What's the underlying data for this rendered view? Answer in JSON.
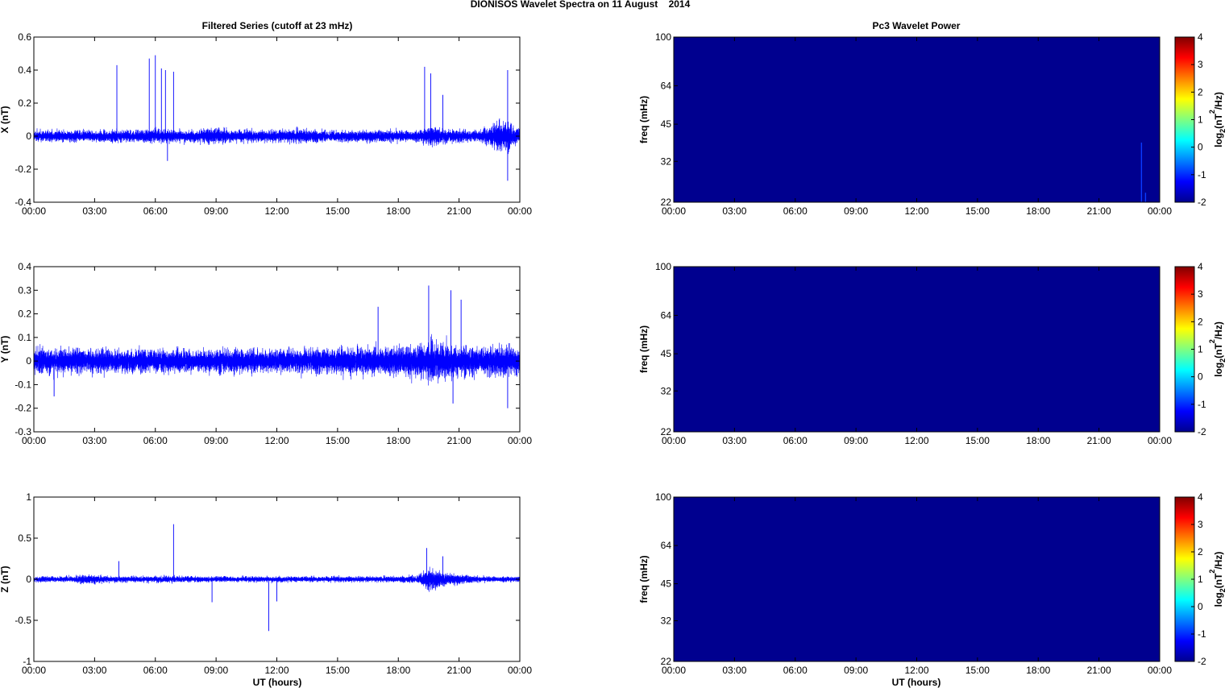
{
  "figure": {
    "title": "DIONISOS Wavelet Spectra on 11 August    2014",
    "left_title": "Filtered Series (cutoff at 23 mHz)",
    "right_title": "Pc3 Wavelet Power",
    "xlabel": "UT (hours)"
  },
  "colors": {
    "trace": "#0000ff",
    "spectrogram_background": "#00008f",
    "axis": "#000000"
  },
  "chart_data": [
    {
      "type": "line",
      "panel": "X",
      "title": "Filtered Series (cutoff at 23 mHz)",
      "xlabel": "",
      "ylabel": "X (nT)",
      "x_ticks": [
        "00:00",
        "03:00",
        "06:00",
        "09:00",
        "12:00",
        "15:00",
        "18:00",
        "21:00",
        "00:00"
      ],
      "y_ticks": [
        0.6,
        0.4,
        0.2,
        0,
        -0.2,
        -0.4
      ],
      "ylim": [
        -0.4,
        0.6
      ],
      "xlim_hours": [
        0,
        24
      ],
      "noise_envelope": {
        "hours": [
          0,
          2,
          4,
          6,
          8,
          8.8,
          9.5,
          11,
          13,
          15,
          17,
          19,
          19.5,
          20.5,
          22,
          23.3,
          23.6,
          24
        ],
        "amplitude": [
          0.05,
          0.05,
          0.05,
          0.06,
          0.05,
          0.08,
          0.06,
          0.05,
          0.06,
          0.05,
          0.05,
          0.05,
          0.09,
          0.06,
          0.05,
          0.15,
          0.1,
          0.05
        ]
      },
      "spikes": [
        {
          "hour": 4.1,
          "value": 0.43
        },
        {
          "hour": 5.7,
          "value": 0.47
        },
        {
          "hour": 6.0,
          "value": 0.49
        },
        {
          "hour": 6.3,
          "value": 0.41
        },
        {
          "hour": 6.5,
          "value": 0.4
        },
        {
          "hour": 6.9,
          "value": 0.39
        },
        {
          "hour": 6.6,
          "value": -0.15
        },
        {
          "hour": 19.3,
          "value": 0.42
        },
        {
          "hour": 19.6,
          "value": 0.38
        },
        {
          "hour": 20.2,
          "value": 0.25
        },
        {
          "hour": 23.4,
          "value": 0.4
        },
        {
          "hour": 23.4,
          "value": -0.27
        }
      ]
    },
    {
      "type": "line",
      "panel": "Y",
      "title": "",
      "xlabel": "",
      "ylabel": "Y (nT)",
      "x_ticks": [
        "00:00",
        "03:00",
        "06:00",
        "09:00",
        "12:00",
        "15:00",
        "18:00",
        "21:00",
        "00:00"
      ],
      "y_ticks": [
        0.4,
        0.3,
        0.2,
        0.1,
        0,
        -0.1,
        -0.2,
        -0.3
      ],
      "ylim": [
        -0.3,
        0.4
      ],
      "xlim_hours": [
        0,
        24
      ],
      "noise_envelope": {
        "hours": [
          0,
          2,
          4,
          6,
          8,
          10,
          12,
          14,
          16,
          18,
          19,
          19.5,
          20.5,
          22,
          23.3,
          24
        ],
        "amplitude": [
          0.08,
          0.08,
          0.07,
          0.07,
          0.07,
          0.07,
          0.07,
          0.08,
          0.08,
          0.09,
          0.1,
          0.12,
          0.1,
          0.08,
          0.1,
          0.08
        ]
      },
      "spikes": [
        {
          "hour": 19.5,
          "value": 0.32
        },
        {
          "hour": 20.6,
          "value": 0.3
        },
        {
          "hour": 21.1,
          "value": 0.26
        },
        {
          "hour": 17.0,
          "value": 0.23
        },
        {
          "hour": 23.4,
          "value": -0.2
        },
        {
          "hour": 1.0,
          "value": -0.15
        },
        {
          "hour": 20.7,
          "value": -0.18
        }
      ]
    },
    {
      "type": "line",
      "panel": "Z",
      "title": "",
      "xlabel": "UT (hours)",
      "ylabel": "Z (nT)",
      "x_ticks": [
        "00:00",
        "03:00",
        "06:00",
        "09:00",
        "12:00",
        "15:00",
        "18:00",
        "21:00",
        "00:00"
      ],
      "y_ticks": [
        1,
        0.5,
        0,
        -0.5,
        -1
      ],
      "ylim": [
        -1,
        1
      ],
      "xlim_hours": [
        0,
        24
      ],
      "noise_envelope": {
        "hours": [
          0,
          2,
          2.5,
          4,
          6,
          8,
          10,
          12,
          14,
          16,
          18,
          19,
          19.5,
          20.5,
          22,
          24
        ],
        "amplitude": [
          0.05,
          0.05,
          0.09,
          0.05,
          0.06,
          0.05,
          0.05,
          0.05,
          0.05,
          0.05,
          0.05,
          0.08,
          0.2,
          0.1,
          0.05,
          0.05
        ]
      },
      "spikes": [
        {
          "hour": 6.9,
          "value": 0.67
        },
        {
          "hour": 11.6,
          "value": -0.63
        },
        {
          "hour": 8.8,
          "value": -0.28
        },
        {
          "hour": 12.0,
          "value": -0.27
        },
        {
          "hour": 4.2,
          "value": 0.22
        },
        {
          "hour": 19.4,
          "value": 0.38
        },
        {
          "hour": 20.2,
          "value": 0.28
        }
      ]
    },
    {
      "type": "heatmap",
      "panel": "X",
      "title": "Pc3 Wavelet Power",
      "ylabel": "freq (mHz)",
      "colorbar_label": "log2(nT2/Hz)",
      "y_ticks": [
        100,
        64,
        45,
        32,
        22
      ],
      "x_ticks": [
        "00:00",
        "03:00",
        "06:00",
        "09:00",
        "12:00",
        "15:00",
        "18:00",
        "21:00",
        "00:00"
      ],
      "colorbar_ticks": [
        4,
        3,
        2,
        1,
        0,
        -1,
        -2
      ],
      "clim": [
        -2,
        4
      ],
      "values": "uniform minimum (-2) except faint features near 23:00",
      "features": [
        {
          "hour": 23.1,
          "freq_top_mHz": 38,
          "value": -1.6
        },
        {
          "hour": 23.3,
          "freq_top_mHz": 24,
          "value": -1.7
        }
      ]
    },
    {
      "type": "heatmap",
      "panel": "Y",
      "title": "",
      "ylabel": "freq (mHz)",
      "colorbar_label": "log2(nT2/Hz)",
      "y_ticks": [
        100,
        64,
        45,
        32,
        22
      ],
      "x_ticks": [
        "00:00",
        "03:00",
        "06:00",
        "09:00",
        "12:00",
        "15:00",
        "18:00",
        "21:00",
        "00:00"
      ],
      "colorbar_ticks": [
        4,
        3,
        2,
        1,
        0,
        -1,
        -2
      ],
      "clim": [
        -2,
        4
      ],
      "values": "uniform minimum (-2)",
      "features": []
    },
    {
      "type": "heatmap",
      "panel": "Z",
      "title": "",
      "xlabel": "UT (hours)",
      "ylabel": "freq (mHz)",
      "colorbar_label": "log2(nT2/Hz)",
      "y_ticks": [
        100,
        64,
        45,
        32,
        22
      ],
      "x_ticks": [
        "00:00",
        "03:00",
        "06:00",
        "09:00",
        "12:00",
        "15:00",
        "18:00",
        "21:00",
        "00:00"
      ],
      "colorbar_ticks": [
        4,
        3,
        2,
        1,
        0,
        -1,
        -2
      ],
      "clim": [
        -2,
        4
      ],
      "values": "uniform minimum (-2)",
      "features": []
    }
  ]
}
